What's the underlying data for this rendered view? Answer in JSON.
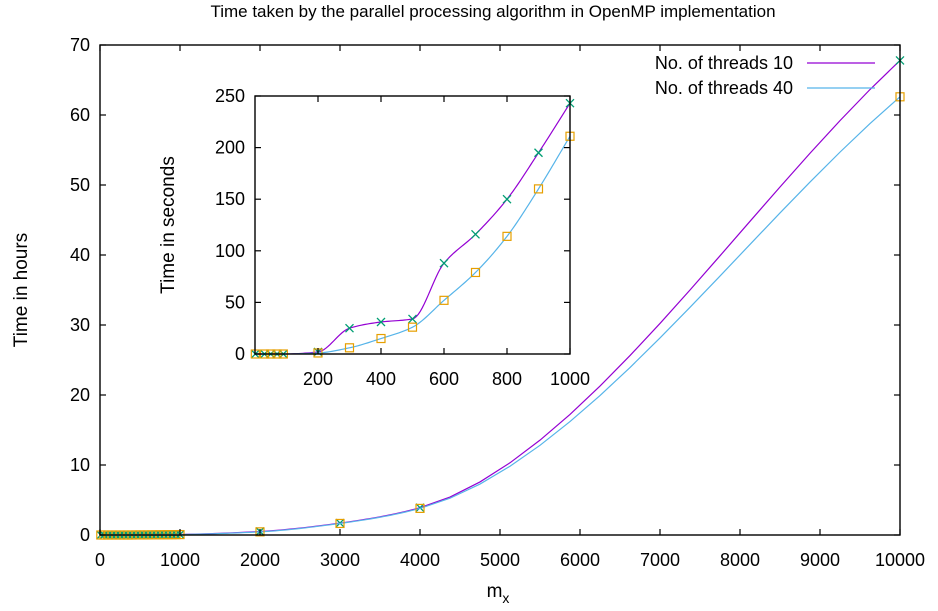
{
  "chart_data": {
    "type": "line",
    "title": "Time taken by the parallel processing algorithm in OpenMP implementation",
    "main": {
      "xlabel_base": "m",
      "xlabel_sub": "x",
      "ylabel": "Time in hours",
      "xlim": [
        0,
        10000
      ],
      "ylim": [
        0,
        70
      ],
      "xticks": [
        0,
        1000,
        2000,
        3000,
        4000,
        5000,
        6000,
        7000,
        8000,
        9000,
        10000
      ],
      "yticks": [
        0,
        10,
        20,
        30,
        40,
        50,
        60,
        70
      ],
      "grid": false,
      "legend_position": "top-right",
      "series": [
        {
          "name": "No. of threads 10",
          "color": "#9400d3",
          "marker": "x",
          "marker_color": "#009e73",
          "x": [
            10,
            50,
            100,
            150,
            200,
            250,
            300,
            350,
            400,
            450,
            500,
            550,
            600,
            650,
            700,
            750,
            800,
            850,
            900,
            950,
            1000,
            2000,
            3000,
            4000,
            10000
          ],
          "y": [
            0,
            0,
            0,
            0,
            0,
            0,
            0.01,
            0.01,
            0.01,
            0.01,
            0.01,
            0.02,
            0.02,
            0.03,
            0.03,
            0.04,
            0.04,
            0.05,
            0.05,
            0.06,
            0.07,
            0.5,
            1.7,
            3.9,
            67.8
          ]
        },
        {
          "name": "No. of threads 40",
          "color": "#56b4e9",
          "marker": "square",
          "marker_color": "#e69f00",
          "x": [
            10,
            50,
            100,
            150,
            200,
            250,
            300,
            350,
            400,
            450,
            500,
            550,
            600,
            650,
            700,
            750,
            800,
            850,
            900,
            950,
            1000,
            2000,
            3000,
            4000,
            10000
          ],
          "y": [
            0,
            0,
            0,
            0,
            0,
            0,
            0,
            0,
            0,
            0.01,
            0.01,
            0.01,
            0.01,
            0.02,
            0.02,
            0.03,
            0.03,
            0.04,
            0.04,
            0.05,
            0.06,
            0.45,
            1.65,
            3.8,
            62.6
          ]
        }
      ]
    },
    "inset": {
      "ylabel": "Time in seconds",
      "xlim": [
        0,
        1000
      ],
      "ylim": [
        0,
        250
      ],
      "xticks": [
        200,
        400,
        600,
        800,
        1000
      ],
      "yticks": [
        0,
        50,
        100,
        150,
        200,
        250
      ],
      "series": [
        {
          "name": "No. of threads 10",
          "color": "#9400d3",
          "marker": "x",
          "marker_color": "#009e73",
          "x": [
            1,
            30,
            50,
            70,
            90,
            200,
            300,
            400,
            500,
            600,
            700,
            800,
            900,
            1000
          ],
          "y": [
            0,
            0,
            0,
            0,
            0,
            2,
            25,
            31,
            34,
            88,
            116,
            150,
            195,
            243
          ]
        },
        {
          "name": "No. of threads 40",
          "color": "#56b4e9",
          "marker": "square",
          "marker_color": "#e69f00",
          "x": [
            1,
            30,
            50,
            70,
            90,
            200,
            300,
            400,
            500,
            600,
            700,
            800,
            900,
            1000
          ],
          "y": [
            0,
            0,
            0,
            0,
            0,
            1,
            6,
            15,
            26,
            52,
            79,
            114,
            160,
            211
          ]
        }
      ]
    }
  }
}
